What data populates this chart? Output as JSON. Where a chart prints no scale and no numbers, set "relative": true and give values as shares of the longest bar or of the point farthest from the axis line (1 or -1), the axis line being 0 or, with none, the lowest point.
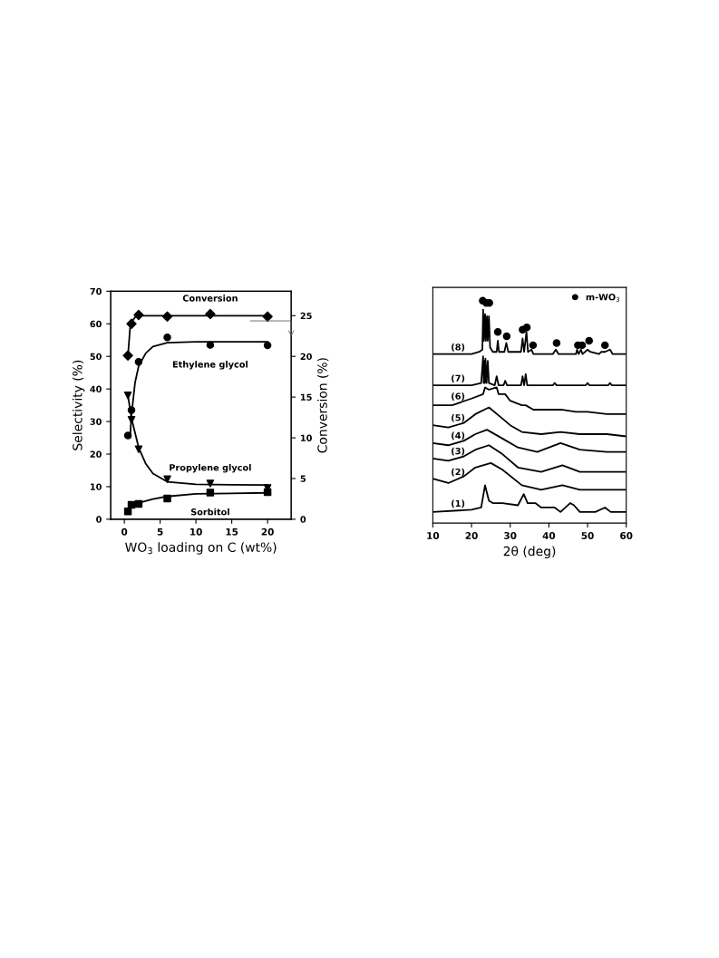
{
  "chart_data": [
    {
      "type": "scatter",
      "xlabel": "WO$_{3}$ loading on C (wt%)",
      "ylabel": "Selectivity (%)",
      "y2label": "Conversion (%)",
      "xlim": [
        -1.9,
        23.3
      ],
      "xticks": [
        0,
        5,
        10,
        15,
        20
      ],
      "ylim": [
        0,
        70
      ],
      "yticks": [
        0,
        10,
        20,
        30,
        40,
        50,
        60,
        70
      ],
      "y2lim": [
        0,
        28
      ],
      "y2ticks": [
        0,
        5,
        10,
        15,
        20,
        25
      ],
      "grid": false,
      "legend": false,
      "series": [
        {
          "name": "Conversion",
          "type": "scatter",
          "axis": "y2",
          "marker": "diamond",
          "color": "#000000",
          "x": [
            0.5,
            1,
            2,
            6,
            12,
            20
          ],
          "values": [
            20.1,
            24.0,
            25.1,
            24.9,
            25.2,
            24.9
          ]
        },
        {
          "name": "Ethylene glycol",
          "type": "scatter",
          "marker": "circle",
          "color": "#000000",
          "x": [
            0.5,
            1,
            2,
            6,
            12,
            20
          ],
          "values": [
            25.7,
            33.5,
            48.3,
            55.8,
            53.5,
            53.4
          ]
        },
        {
          "name": "Propylene glycol",
          "type": "scatter",
          "marker": "triangle",
          "color": "#000000",
          "x": [
            0.5,
            1,
            2,
            6,
            12,
            20
          ],
          "values": [
            38,
            30.5,
            21.5,
            12.3,
            11,
            9.6
          ]
        },
        {
          "name": "Sorbitol",
          "type": "scatter",
          "marker": "square",
          "color": "#000000",
          "x": [
            0.5,
            1,
            2,
            6,
            12,
            20
          ],
          "values": [
            2.4,
            4.4,
            4.7,
            6.4,
            8.2,
            8.3
          ]
        },
        {
          "type": "line",
          "axis": "y2",
          "color": "#000000",
          "x": [
            0.5,
            0.8,
            1,
            1.5,
            2,
            6,
            12,
            20
          ],
          "values": [
            20,
            23.5,
            24.2,
            24.8,
            25,
            25,
            25,
            25
          ]
        },
        {
          "type": "line",
          "color": "#000000",
          "x": [
            0.8,
            1,
            1.5,
            2,
            3,
            4,
            6,
            10,
            20
          ],
          "values": [
            25,
            32,
            42,
            47,
            51,
            53,
            54.2,
            54.5,
            54.5
          ]
        },
        {
          "type": "line",
          "color": "#000000",
          "x": [
            0.5,
            1,
            2,
            3,
            4,
            6,
            10,
            20
          ],
          "values": [
            38,
            31,
            22,
            17,
            14,
            11.5,
            10.7,
            10.5
          ]
        },
        {
          "type": "line",
          "color": "#000000",
          "x": [
            1,
            2,
            4,
            6,
            10,
            20
          ],
          "values": [
            4,
            5,
            6.2,
            7,
            7.8,
            8.1
          ]
        }
      ]
    },
    {
      "type": "line",
      "relative": true,
      "xlabel": "2θ (deg)",
      "xlim": [
        10,
        60
      ],
      "xticks": [
        10,
        20,
        30,
        40,
        50,
        60
      ],
      "tick_labels": "x",
      "grid": false,
      "legend": "top right",
      "series": [
        {
          "name": "(8)",
          "color": "#000000",
          "x": [
            10,
            15,
            20,
            22,
            22.8,
            23.0,
            23.2,
            23.5,
            23.7,
            24.0,
            24.2,
            24.5,
            24.8,
            25.5,
            26.5,
            26.8,
            27.1,
            28.5,
            29.0,
            29.5,
            32.8,
            33.2,
            33.6,
            34.2,
            34.6,
            35.5,
            36,
            41,
            41.8,
            42.5,
            47,
            47.3,
            47.7,
            48.3,
            48.7,
            50,
            50.7,
            53,
            53.5,
            54.5,
            55.8,
            56.5,
            60
          ],
          "values": [
            0.76,
            0.76,
            0.76,
            0.77,
            0.78,
            0.96,
            0.82,
            0.94,
            0.82,
            0.93,
            0.82,
            0.93,
            0.79,
            0.77,
            0.77,
            0.82,
            0.77,
            0.77,
            0.81,
            0.77,
            0.77,
            0.83,
            0.77,
            0.86,
            0.77,
            0.78,
            0.76,
            0.76,
            0.78,
            0.76,
            0.76,
            0.78,
            0.76,
            0.78,
            0.76,
            0.78,
            0.77,
            0.76,
            0.77,
            0.77,
            0.78,
            0.76,
            0.76
          ]
        },
        {
          "name": "(7)",
          "color": "#000000",
          "x": [
            10,
            15,
            20,
            22.5,
            23.0,
            23.15,
            23.3,
            23.45,
            23.6,
            23.9,
            24.2,
            24.5,
            26,
            26.5,
            27,
            28.3,
            28.7,
            29.2,
            32.8,
            33.2,
            33.6,
            34.0,
            34.4,
            41,
            41.5,
            42,
            49.5,
            50,
            50.5,
            55.3,
            55.8,
            56.3,
            60
          ],
          "values": [
            0.62,
            0.62,
            0.62,
            0.63,
            0.75,
            0.63,
            0.73,
            0.63,
            0.74,
            0.63,
            0.73,
            0.63,
            0.62,
            0.66,
            0.62,
            0.62,
            0.64,
            0.62,
            0.62,
            0.66,
            0.62,
            0.67,
            0.62,
            0.62,
            0.63,
            0.62,
            0.62,
            0.63,
            0.62,
            0.62,
            0.63,
            0.62,
            0.62
          ]
        },
        {
          "name": "(6)",
          "color": "#000000",
          "x": [
            10,
            15,
            20,
            23,
            23.5,
            24.5,
            26.5,
            27,
            28.7,
            30,
            33,
            34,
            36,
            40,
            43.5,
            47,
            50,
            55,
            60
          ],
          "values": [
            0.53,
            0.53,
            0.56,
            0.58,
            0.61,
            0.6,
            0.61,
            0.58,
            0.58,
            0.55,
            0.53,
            0.53,
            0.51,
            0.51,
            0.51,
            0.5,
            0.5,
            0.49,
            0.49
          ]
        },
        {
          "name": "(5)",
          "color": "#000000",
          "x": [
            10,
            14,
            18,
            21,
            24.5,
            28,
            30,
            33,
            38,
            43,
            48,
            55,
            60
          ],
          "values": [
            0.44,
            0.43,
            0.45,
            0.49,
            0.52,
            0.47,
            0.44,
            0.41,
            0.4,
            0.41,
            0.4,
            0.4,
            0.39
          ]
        },
        {
          "name": "(4)",
          "color": "#000000",
          "x": [
            10,
            14,
            18,
            21,
            24,
            28,
            32,
            37,
            43,
            48,
            55,
            60
          ],
          "values": [
            0.36,
            0.35,
            0.37,
            0.4,
            0.42,
            0.38,
            0.34,
            0.32,
            0.36,
            0.33,
            0.32,
            0.32
          ]
        },
        {
          "name": "(3)",
          "color": "#000000",
          "x": [
            10,
            14,
            18,
            21,
            24.5,
            28,
            32,
            38,
            43.5,
            48,
            55,
            60
          ],
          "values": [
            0.29,
            0.28,
            0.3,
            0.33,
            0.35,
            0.31,
            0.25,
            0.23,
            0.26,
            0.23,
            0.23,
            0.23
          ]
        },
        {
          "name": "(2)",
          "color": "#000000",
          "x": [
            10,
            14,
            18,
            21,
            25,
            28,
            33,
            38,
            43.5,
            48,
            55,
            60
          ],
          "values": [
            0.2,
            0.18,
            0.21,
            0.25,
            0.27,
            0.24,
            0.17,
            0.15,
            0.17,
            0.15,
            0.15,
            0.15
          ]
        },
        {
          "name": "(1)",
          "color": "#000000",
          "x": [
            10,
            20,
            22.5,
            23.5,
            24.5,
            25.5,
            28,
            32,
            33.5,
            34.5,
            36.5,
            38,
            41.5,
            43,
            45.5,
            46.5,
            48,
            52,
            54.5,
            56,
            60
          ],
          "values": [
            0.05,
            0.06,
            0.07,
            0.17,
            0.1,
            0.09,
            0.09,
            0.08,
            0.13,
            0.09,
            0.09,
            0.07,
            0.07,
            0.05,
            0.09,
            0.08,
            0.05,
            0.05,
            0.07,
            0.05,
            0.05
          ]
        },
        {
          "name": "m-WO$_{3}$",
          "type": "scatter",
          "marker": "circle",
          "color": "#000000",
          "x": [
            22.9,
            23.8,
            24.6,
            26.8,
            29.1,
            33.2,
            34.3,
            35.9,
            42.0,
            47.5,
            48.6,
            50.4,
            54.5
          ],
          "values": [
            1.0,
            0.99,
            0.99,
            0.86,
            0.84,
            0.87,
            0.88,
            0.8,
            0.81,
            0.8,
            0.8,
            0.82,
            0.8
          ]
        }
      ]
    }
  ]
}
